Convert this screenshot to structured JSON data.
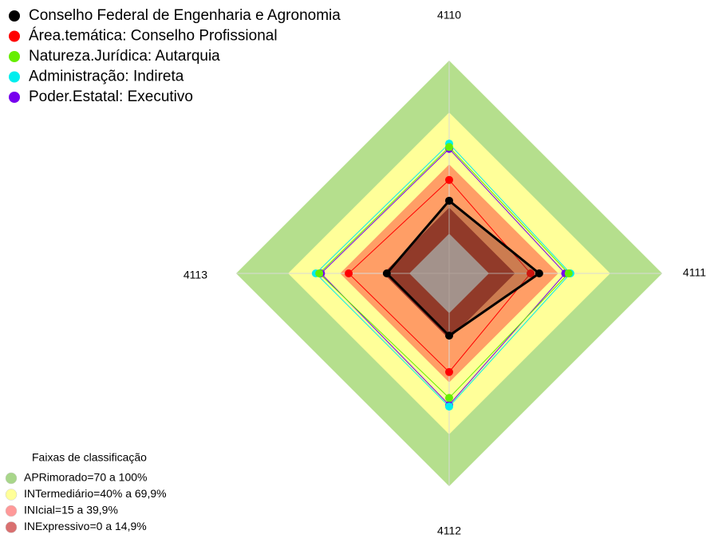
{
  "chart_data": {
    "type": "radar",
    "categories": [
      "4110",
      "4111",
      "4112",
      "4113"
    ],
    "rlim": [
      -23,
      100
    ],
    "series": [
      {
        "name": "Conselho Federal de Engenharia e Agronomia",
        "color": "#000000",
        "values": [
          19,
          29,
          13,
          13
        ]
      },
      {
        "name": "Área.temática: Conselho Profissional",
        "color": "#ff0000",
        "values": [
          31,
          24,
          34,
          35
        ]
      },
      {
        "name": "Natureza.Jurídica: Autarquia",
        "color": "#66ee00",
        "values": [
          50,
          46,
          49,
          52
        ]
      },
      {
        "name": "Administração: Indireta",
        "color": "#00eeee",
        "values": [
          52,
          47,
          54,
          54
        ]
      },
      {
        "name": "Poder.Estatal: Executivo",
        "color": "#7700ee",
        "values": [
          49,
          44,
          53,
          51
        ]
      }
    ],
    "bands_title": "Faixas de classificação",
    "bands": [
      {
        "label": "APRimorado=70 a 100%",
        "color": "#b5df8d",
        "legend_color": "#a8d68a",
        "min": 70,
        "max": 100
      },
      {
        "label": "INTermediário=40% a 69,9%",
        "color": "#ffff99",
        "legend_color": "#ffff99",
        "min": 40,
        "max": 70
      },
      {
        "label": "INIcial=15 a 39,9%",
        "color": "#ff9e66",
        "legend_color": "#ff9999",
        "min": 15,
        "max": 40
      },
      {
        "label": "INExpressivo=0 a 14,9%",
        "color": "#a53a2a",
        "legend_color": "#d97070",
        "min": 0,
        "max": 15
      }
    ]
  }
}
